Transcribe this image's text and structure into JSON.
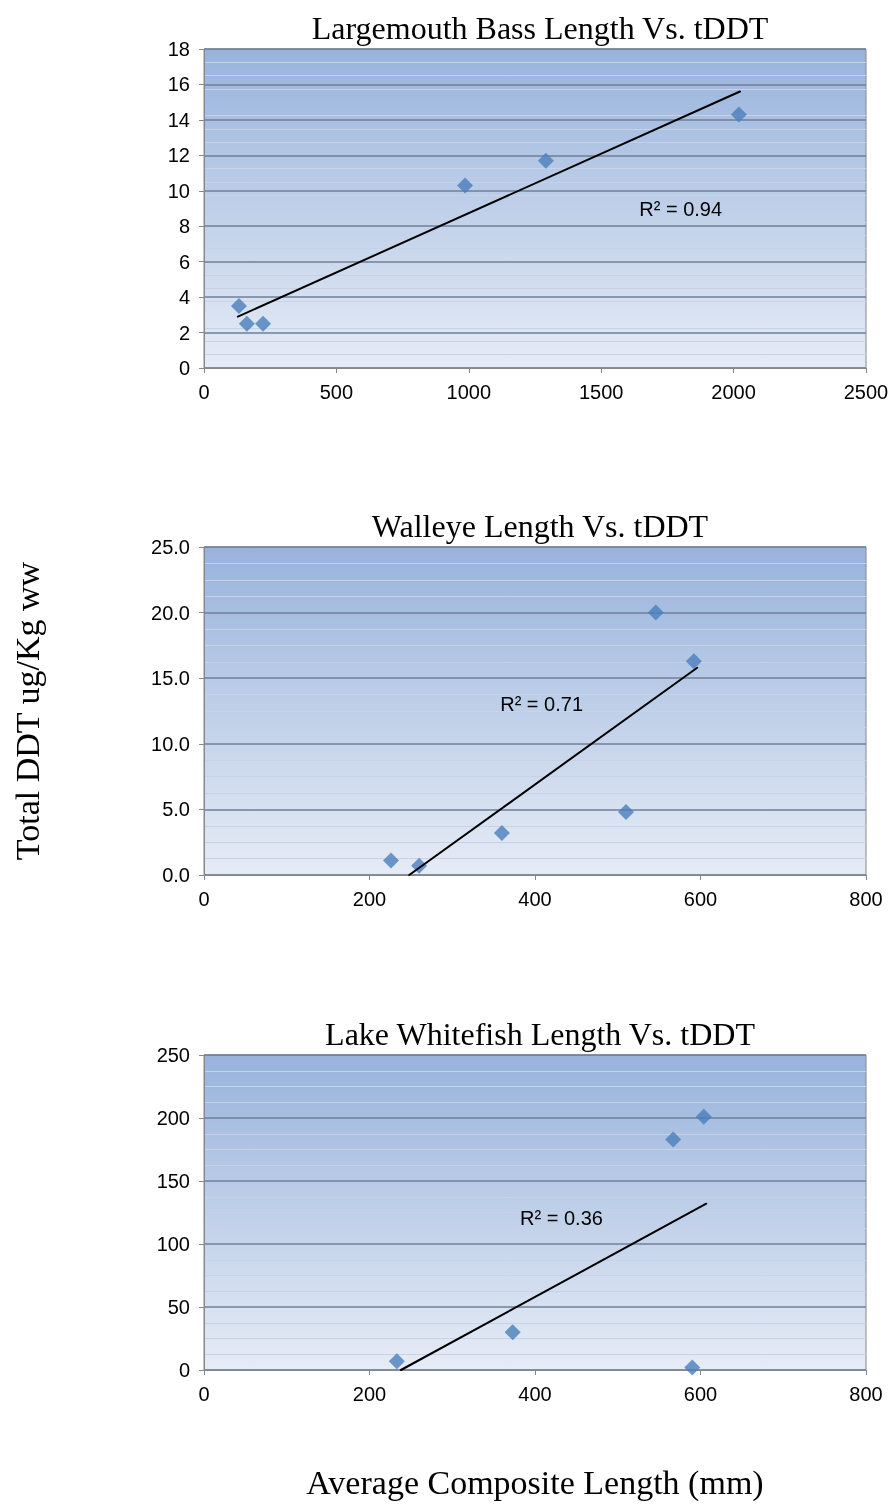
{
  "chart_data": [
    {
      "type": "scatter",
      "title": "Largemouth Bass Length Vs. tDDT",
      "grid": "y",
      "xlim": [
        0,
        2500
      ],
      "xticks": [
        0,
        500,
        1000,
        1500,
        2000,
        2500
      ],
      "ylim": [
        0,
        18
      ],
      "yticks": [
        0,
        2,
        4,
        6,
        8,
        10,
        12,
        14,
        16,
        18
      ],
      "series": [
        {
          "color": "#4a7ebb",
          "marker": "diamond",
          "x": [
            132,
            162,
            223,
            986,
            1291,
            2020
          ],
          "values": [
            3.5,
            2.5,
            2.5,
            10.3,
            11.7,
            14.3
          ]
        },
        {
          "type": "line",
          "marker": "none",
          "color": "#000000",
          "x": [
            128,
            2024
          ],
          "values": [
            2.9,
            15.6
          ]
        }
      ],
      "annotations": [
        "R² = 0.94"
      ]
    },
    {
      "type": "scatter",
      "title": "Walleye Length Vs. tDDT",
      "ylabel": "Total DDT ug/Kg ww",
      "grid": "y",
      "xlim": [
        0,
        800
      ],
      "xticks": [
        0,
        200,
        400,
        600,
        800
      ],
      "ylim": [
        0,
        25
      ],
      "yticks": [
        {
          "value": 0,
          "label": "0.0"
        },
        {
          "value": 5,
          "label": "5.0"
        },
        {
          "value": 10,
          "label": "10.0"
        },
        {
          "value": 15,
          "label": "15.0"
        },
        {
          "value": 20,
          "label": "20.0"
        },
        {
          "value": 25,
          "label": "25.0"
        }
      ],
      "series": [
        {
          "color": "#4a7ebb",
          "marker": "diamond",
          "x": [
            226,
            260,
            360,
            510,
            546,
            592
          ],
          "values": [
            1.1,
            0.7,
            3.2,
            4.8,
            20,
            16.3
          ]
        },
        {
          "type": "line",
          "marker": "none",
          "color": "#000000",
          "x": [
            248,
            596
          ],
          "values": [
            0,
            15.8
          ]
        }
      ],
      "annotations": [
        "R² = 0.71"
      ]
    },
    {
      "type": "scatter",
      "title": "Lake Whitefish Length Vs. tDDT",
      "xlabel": "Average Composite Length (mm)",
      "grid": "y",
      "xlim": [
        0,
        800
      ],
      "xticks": [
        0,
        200,
        400,
        600,
        800
      ],
      "ylim": [
        0,
        250
      ],
      "yticks": [
        0,
        50,
        100,
        150,
        200,
        250
      ],
      "series": [
        {
          "color": "#4a7ebb",
          "marker": "diamond",
          "x": [
            233,
            373,
            567,
            604,
            590
          ],
          "values": [
            7,
            30,
            183,
            201,
            2
          ]
        },
        {
          "type": "line",
          "marker": "none",
          "color": "#000000",
          "x": [
            238,
            607
          ],
          "values": [
            0,
            132
          ]
        }
      ],
      "annotations": [
        "R² = 0.36"
      ]
    }
  ]
}
